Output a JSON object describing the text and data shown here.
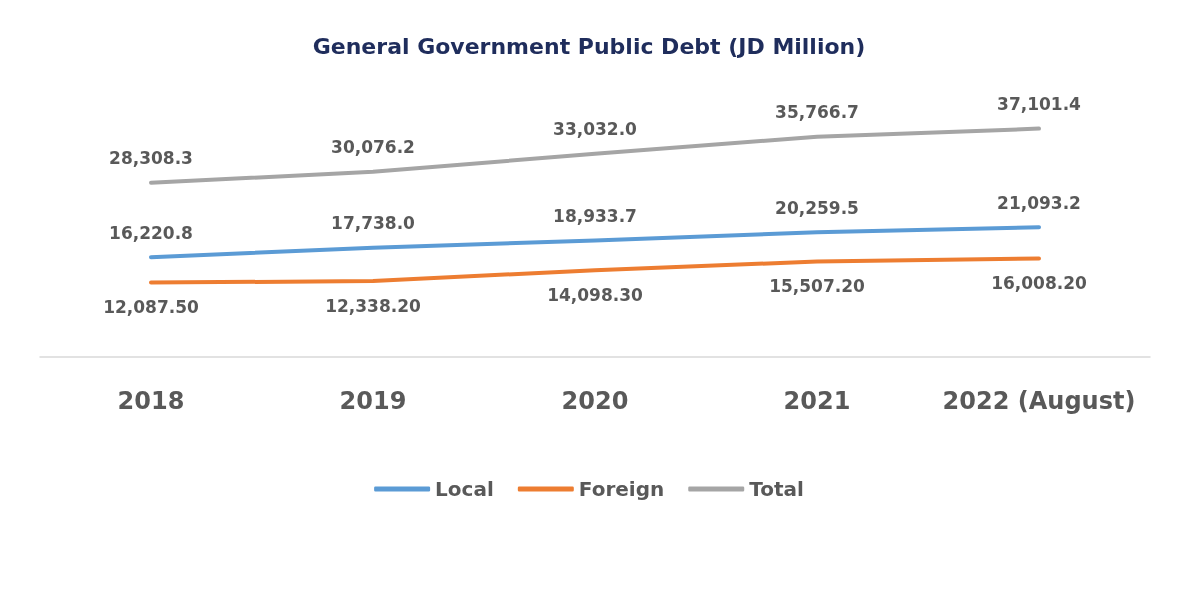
{
  "chart_data": {
    "type": "line",
    "title": "General Government Public Debt (JD Million)",
    "categories": [
      "2018",
      "2019",
      "2020",
      "2021",
      "2022 (August)"
    ],
    "series": [
      {
        "name": "Local",
        "color": "#5b9bd5",
        "values": [
          16220.8,
          17738.0,
          18933.7,
          20259.5,
          21093.2
        ],
        "value_labels": [
          "16,220.8",
          "17,738.0",
          "18,933.7",
          "20,259.5",
          "21,093.2"
        ]
      },
      {
        "name": "Foreign",
        "color": "#ed7d31",
        "values": [
          12087.5,
          12338.2,
          14098.3,
          15507.2,
          16008.2
        ],
        "value_labels": [
          "12,087.50",
          "12,338.20",
          "14,098.30",
          "15,507.20",
          "16,008.20"
        ]
      },
      {
        "name": "Total",
        "color": "#a5a5a5",
        "values": [
          28308.3,
          30076.2,
          33032.0,
          35766.7,
          37101.4
        ],
        "value_labels": [
          "28,308.3",
          "30,076.2",
          "33,032.0",
          "35,766.7",
          "37,101.4"
        ]
      }
    ],
    "legend": "bottom",
    "grid": false,
    "marker": "none",
    "line_style": "solid"
  }
}
